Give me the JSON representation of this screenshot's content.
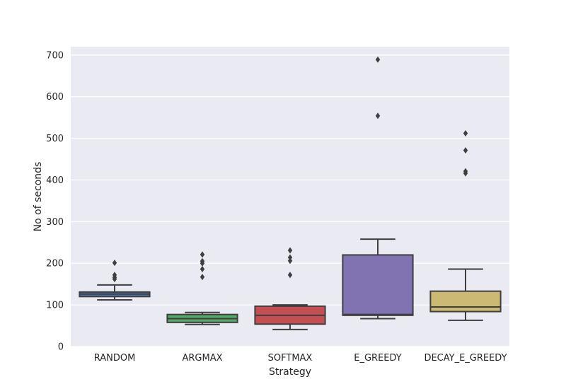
{
  "chart_data": {
    "type": "box",
    "title": "",
    "xlabel": "Strategy",
    "ylabel": "No of seconds",
    "ylim": [
      0,
      720
    ],
    "yticks": [
      0,
      100,
      200,
      300,
      400,
      500,
      600,
      700
    ],
    "grid": true,
    "legend": "none",
    "background": "#eaeaf2",
    "categories": [
      "RANDOM",
      "ARGMAX",
      "SOFTMAX",
      "E_GREEDY",
      "DECAY_E_GREEDY"
    ],
    "boxes": [
      {
        "category": "RANDOM",
        "color": "#4c72b0",
        "whisker_low": 112,
        "q1": 120,
        "median": 126,
        "q3": 131,
        "whisker_high": 148,
        "outliers": [
          162,
          166,
          172,
          201
        ]
      },
      {
        "category": "ARGMAX",
        "color": "#55a868",
        "whisker_low": 53,
        "q1": 58,
        "median": 67,
        "q3": 77,
        "whisker_high": 82,
        "outliers": [
          167,
          186,
          200,
          205,
          221
        ]
      },
      {
        "category": "SOFTMAX",
        "color": "#c44e52",
        "whisker_low": 41,
        "q1": 54,
        "median": 75,
        "q3": 97,
        "whisker_high": 100,
        "outliers": [
          172,
          206,
          214,
          231
        ]
      },
      {
        "category": "E_GREEDY",
        "color": "#8172b2",
        "whisker_low": 67,
        "q1": 75,
        "median": 77,
        "q3": 220,
        "whisker_high": 258,
        "outliers": [
          554,
          689
        ]
      },
      {
        "category": "DECAY_E_GREEDY",
        "color": "#ccb974",
        "whisker_low": 63,
        "q1": 84,
        "median": 95,
        "q3": 133,
        "whisker_high": 186,
        "outliers": [
          416,
          421,
          471,
          512
        ]
      }
    ]
  }
}
